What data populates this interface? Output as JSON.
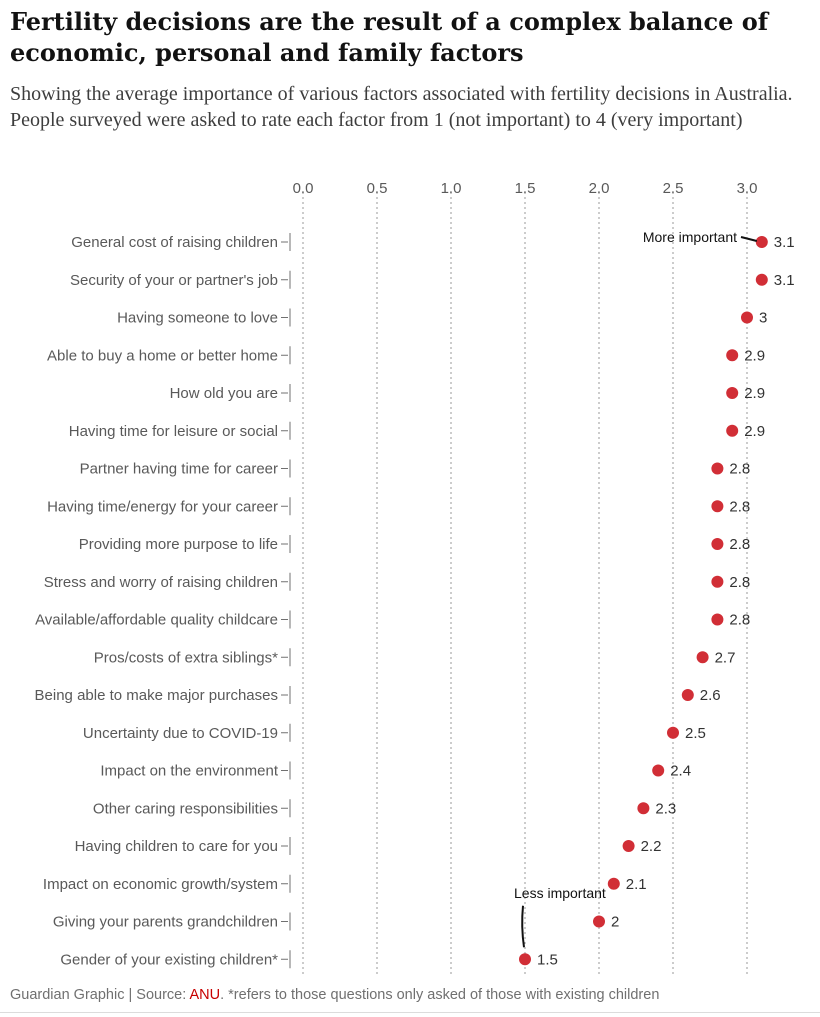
{
  "title": "Fertility decisions are the result of a complex balance of economic, personal and family factors",
  "subtitle": "Showing the average importance of various factors associated with fertility decisions in Australia. People surveyed were asked to rate each factor from 1 (not important) to 4 (very important)",
  "footer": {
    "credit": "Guardian Graphic | Source: ",
    "source": "ANU",
    "note": ". *refers to those questions only asked of those with existing children"
  },
  "colors": {
    "dot": "#d12e36",
    "grid": "#999999",
    "axis": "#707070",
    "text": "#595959"
  },
  "chart_data": {
    "type": "scatter",
    "xlim": [
      0,
      3.0
    ],
    "ticks": [
      "0.0",
      "0.5",
      "1.0",
      "1.5",
      "2.0",
      "2.5",
      "3.0"
    ],
    "tick_values": [
      0,
      0.5,
      1.0,
      1.5,
      2.0,
      2.5,
      3.0
    ],
    "grid": true,
    "categories": [
      "General cost of raising children",
      "Security of your or partner's job",
      "Having someone to love",
      "Able to buy a home or better home",
      "How old you are",
      "Having time for leisure or social",
      "Partner having time for career",
      "Having time/energy for your career",
      "Providing more purpose to life",
      "Stress and worry of raising children",
      "Available/affordable quality childcare",
      "Pros/costs of extra siblings*",
      "Being able to make major purchases",
      "Uncertainty due to COVID-19",
      "Impact on the environment",
      "Other caring responsibilities",
      "Having children to care for you",
      "Impact on economic growth/system",
      "Giving your parents grandchildren",
      "Gender of your existing children*"
    ],
    "values": [
      3.1,
      3.1,
      3.0,
      2.9,
      2.9,
      2.9,
      2.8,
      2.8,
      2.8,
      2.8,
      2.8,
      2.7,
      2.6,
      2.5,
      2.4,
      2.3,
      2.2,
      2.1,
      2.0,
      1.5
    ],
    "labels": [
      "3.1",
      "3.1",
      "3",
      "2.9",
      "2.9",
      "2.9",
      "2.8",
      "2.8",
      "2.8",
      "2.8",
      "2.8",
      "2.7",
      "2.6",
      "2.5",
      "2.4",
      "2.3",
      "2.2",
      "2.1",
      "2",
      "1.5"
    ],
    "annotations": [
      {
        "text": "More important",
        "point": 0
      },
      {
        "text": "Less important",
        "point": 19
      }
    ]
  }
}
